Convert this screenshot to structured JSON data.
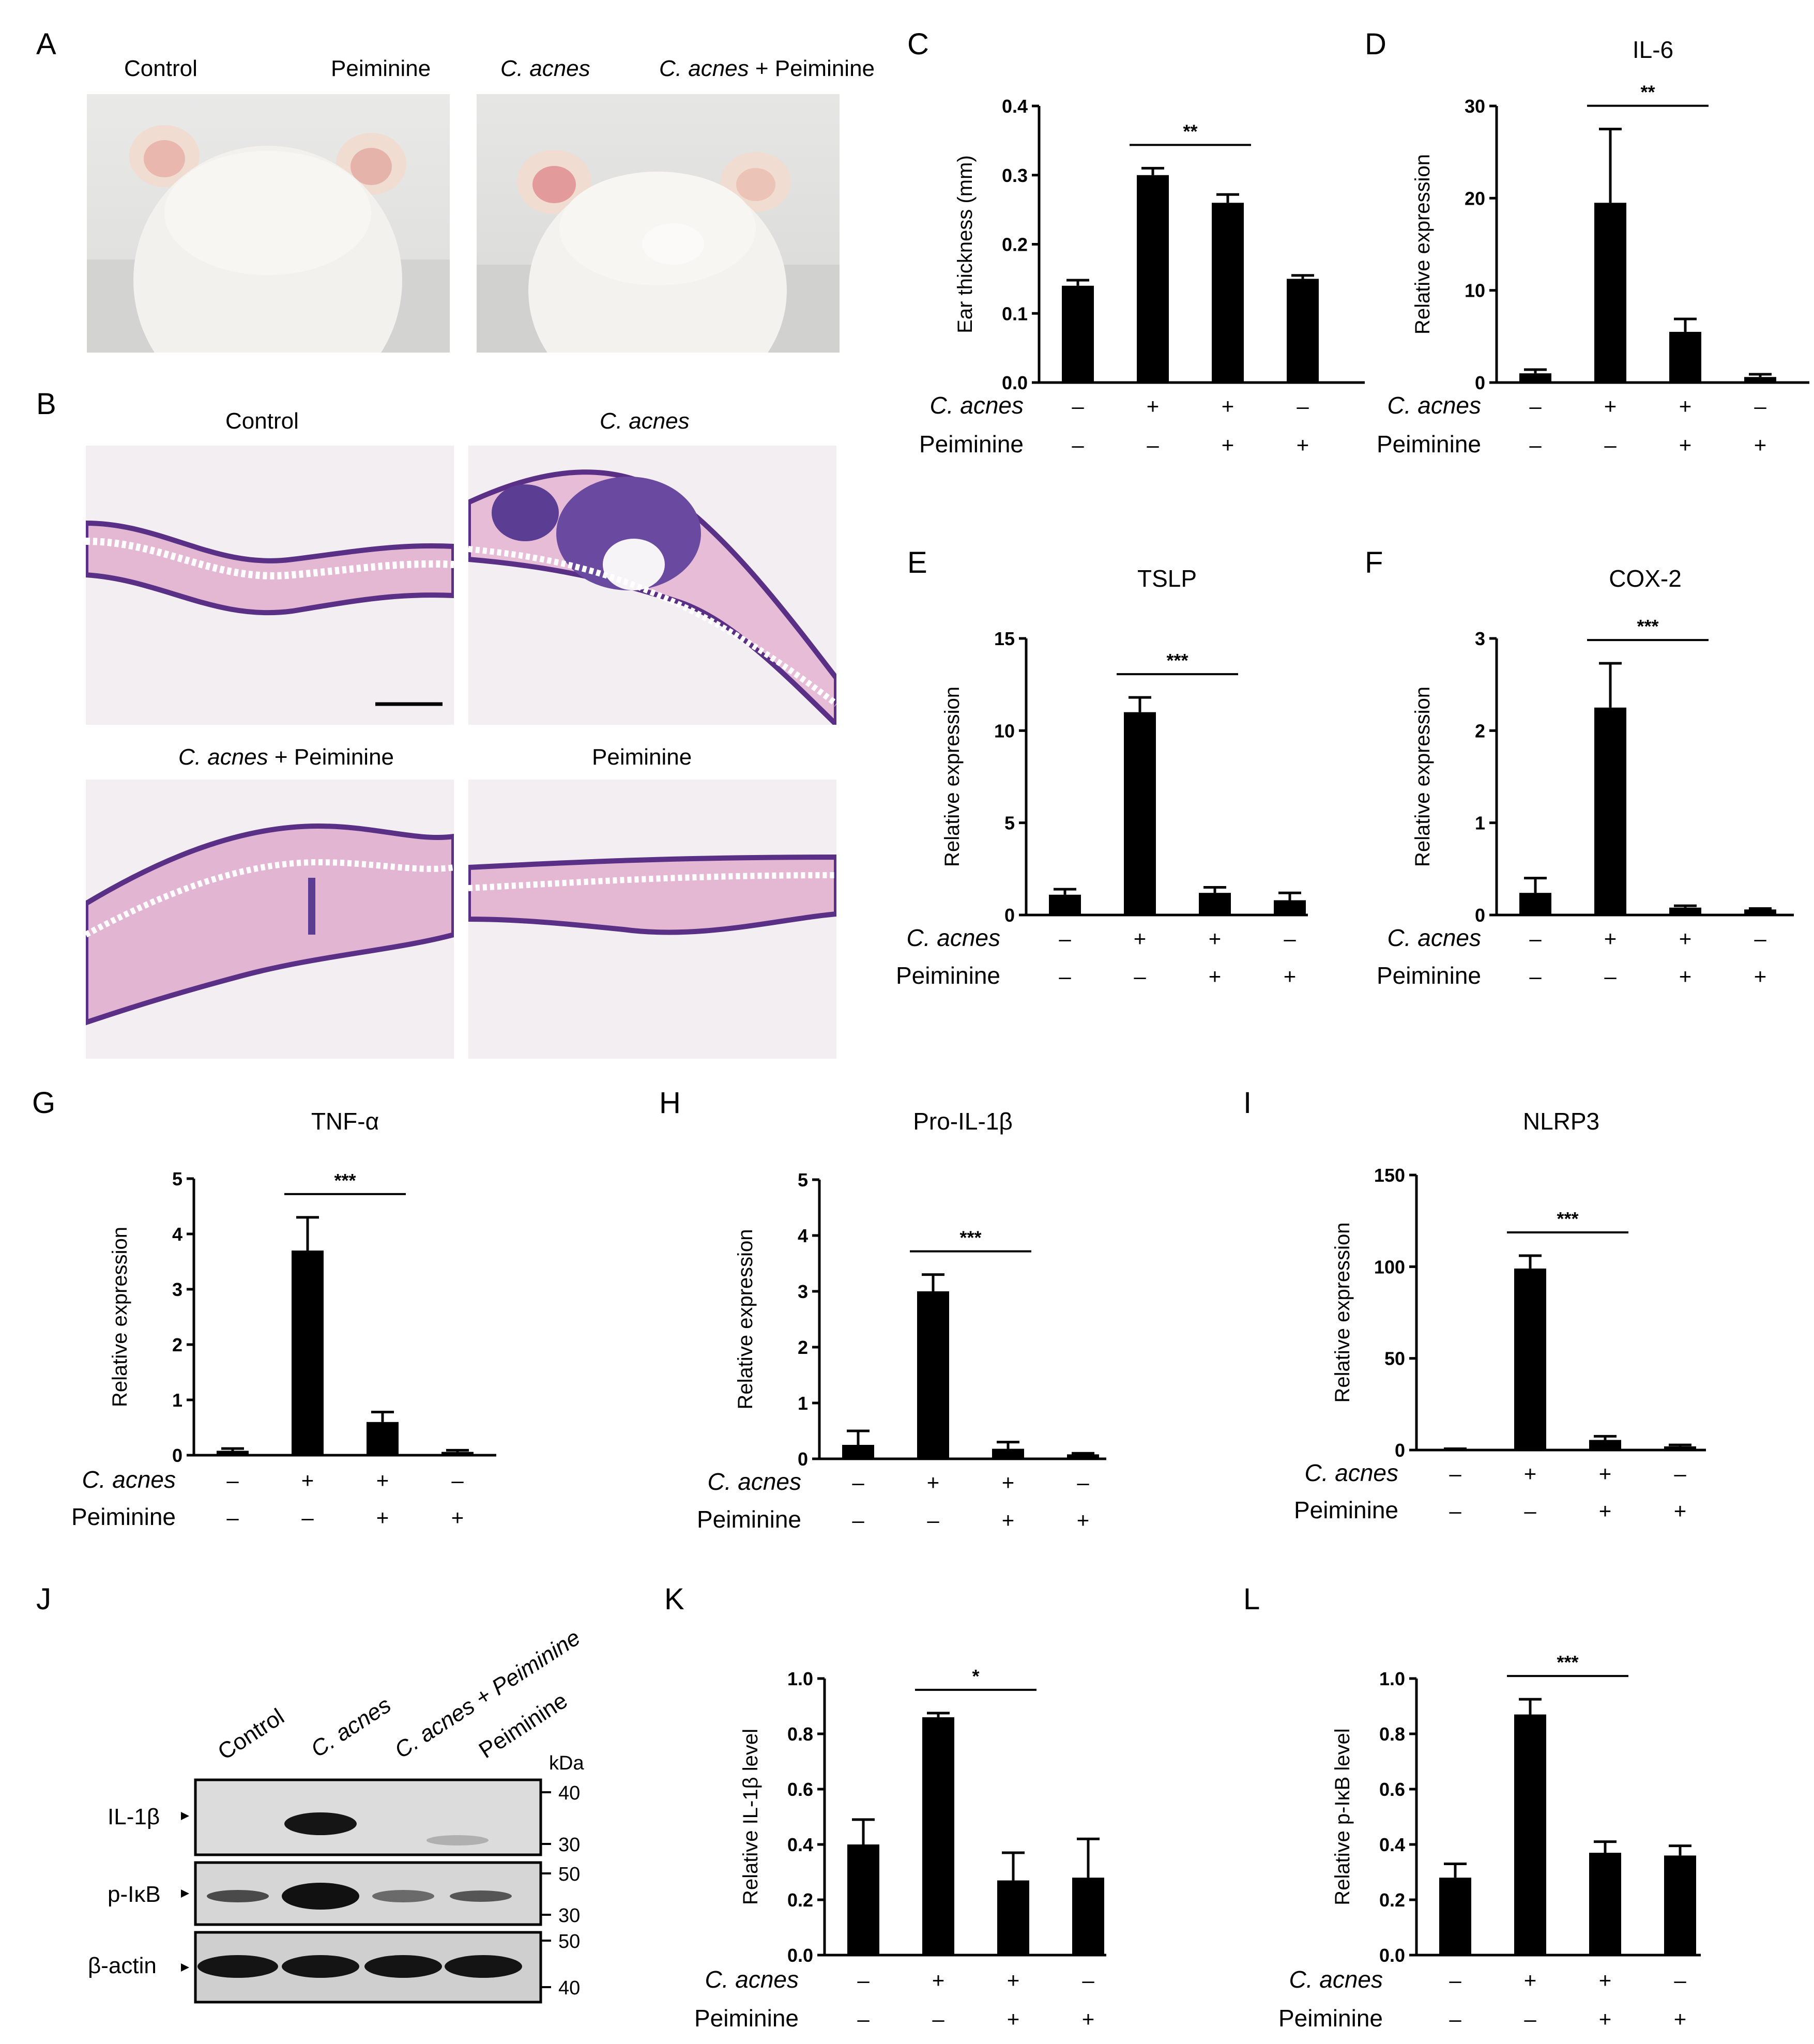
{
  "panel_letters": [
    "A",
    "B",
    "C",
    "D",
    "E",
    "F",
    "G",
    "H",
    "I",
    "J",
    "K",
    "L"
  ],
  "panel_a": {
    "labels": [
      "Control",
      "Peiminine",
      "C. acnes",
      "C. acnes",
      "+ Peiminine"
    ]
  },
  "panel_b": {
    "labels": [
      "Control",
      "C. acnes",
      "C. acnes",
      "+ Peiminine",
      "Peiminine"
    ]
  },
  "treatment_rows": {
    "c_acnes_label": "C. acnes",
    "peiminine_label": "Peiminine",
    "c_acnes": [
      "–",
      "+",
      "+",
      "–"
    ],
    "peiminine": [
      "–",
      "–",
      "+",
      "+"
    ]
  },
  "panel_j": {
    "lanes": [
      "Control",
      "C. acnes",
      "C. acnes + Peiminine",
      "Peiminine"
    ],
    "kda_label": "kDa",
    "rows": [
      {
        "label": "IL-1β",
        "markers": [
          "40",
          "30"
        ]
      },
      {
        "label": "p-IκB",
        "markers": [
          "50",
          "30"
        ]
      },
      {
        "label": "β-actin",
        "markers": [
          "50",
          "40"
        ]
      }
    ]
  },
  "chart_data": [
    {
      "id": "C",
      "type": "bar",
      "title": "",
      "ylabel": "Ear thickness (mm)",
      "ylim": [
        0,
        0.4
      ],
      "yticks": [
        "0.0",
        "0.1",
        "0.2",
        "0.3",
        "0.4"
      ],
      "values": [
        0.14,
        0.3,
        0.26,
        0.15
      ],
      "errors": [
        0.008,
        0.01,
        0.012,
        0.005
      ],
      "sig": {
        "label": "**",
        "from": 1,
        "to": 2
      }
    },
    {
      "id": "D",
      "type": "bar",
      "title": "IL-6",
      "ylabel": "Relative expression",
      "ylim": [
        0,
        30
      ],
      "yticks": [
        "0",
        "10",
        "20",
        "30"
      ],
      "values": [
        1.0,
        19.5,
        5.5,
        0.6
      ],
      "errors": [
        0.4,
        8.0,
        1.4,
        0.3
      ],
      "sig": {
        "label": "**",
        "from": 1,
        "to": 2
      }
    },
    {
      "id": "E",
      "type": "bar",
      "title": "TSLP",
      "ylabel": "Relative expression",
      "ylim": [
        0,
        15
      ],
      "yticks": [
        "0",
        "5",
        "10",
        "15"
      ],
      "values": [
        1.1,
        11.0,
        1.2,
        0.8
      ],
      "errors": [
        0.3,
        0.8,
        0.3,
        0.4
      ],
      "sig": {
        "label": "***",
        "from": 1,
        "to": 2
      }
    },
    {
      "id": "F",
      "type": "bar",
      "title": "COX-2",
      "ylabel": "Relative expression",
      "ylim": [
        0,
        3
      ],
      "yticks": [
        "0",
        "1",
        "2",
        "3"
      ],
      "values": [
        0.24,
        2.25,
        0.08,
        0.06
      ],
      "errors": [
        0.16,
        0.48,
        0.02,
        0.01
      ],
      "sig": {
        "label": "***",
        "from": 1,
        "to": 2
      }
    },
    {
      "id": "G",
      "type": "bar",
      "title": "TNF-α",
      "ylabel": "Relative expression",
      "ylim": [
        0,
        5
      ],
      "yticks": [
        "0",
        "1",
        "2",
        "3",
        "4",
        "5"
      ],
      "values": [
        0.08,
        3.7,
        0.6,
        0.06
      ],
      "errors": [
        0.04,
        0.6,
        0.18,
        0.03
      ],
      "sig": {
        "label": "***",
        "from": 1,
        "to": 2
      }
    },
    {
      "id": "H",
      "type": "bar",
      "title": "Pro-IL-1β",
      "ylabel": "Relative expression",
      "ylim": [
        0,
        5
      ],
      "yticks": [
        "0",
        "1",
        "2",
        "3",
        "4",
        "5"
      ],
      "values": [
        0.25,
        3.0,
        0.18,
        0.08
      ],
      "errors": [
        0.25,
        0.3,
        0.12,
        0.02
      ],
      "sig": {
        "label": "***",
        "from": 1,
        "to": 2
      }
    },
    {
      "id": "I",
      "type": "bar",
      "title": "NLRP3",
      "ylabel": "Relative expression",
      "ylim": [
        0,
        150
      ],
      "yticks": [
        "0",
        "50",
        "100",
        "150"
      ],
      "values": [
        0.5,
        99,
        5.5,
        2.0
      ],
      "errors": [
        0.2,
        7,
        2,
        0.8
      ],
      "sig": {
        "label": "***",
        "from": 1,
        "to": 2
      }
    },
    {
      "id": "K",
      "type": "bar",
      "title": "",
      "ylabel": "Relative IL-1β level",
      "ylim": [
        0,
        1.0
      ],
      "yticks": [
        "0.0",
        "0.2",
        "0.4",
        "0.6",
        "0.8",
        "1.0"
      ],
      "values": [
        0.4,
        0.86,
        0.27,
        0.28
      ],
      "errors": [
        0.09,
        0.015,
        0.1,
        0.14
      ],
      "sig": {
        "label": "*",
        "from": 1,
        "to": 2
      }
    },
    {
      "id": "L",
      "type": "bar",
      "title": "",
      "ylabel": "Relative p-IκB level",
      "ylim": [
        0,
        1.0
      ],
      "yticks": [
        "0.0",
        "0.2",
        "0.4",
        "0.6",
        "0.8",
        "1.0"
      ],
      "values": [
        0.28,
        0.87,
        0.37,
        0.36
      ],
      "errors": [
        0.05,
        0.055,
        0.04,
        0.035
      ],
      "sig": {
        "label": "***",
        "from": 1,
        "to": 2
      }
    }
  ]
}
